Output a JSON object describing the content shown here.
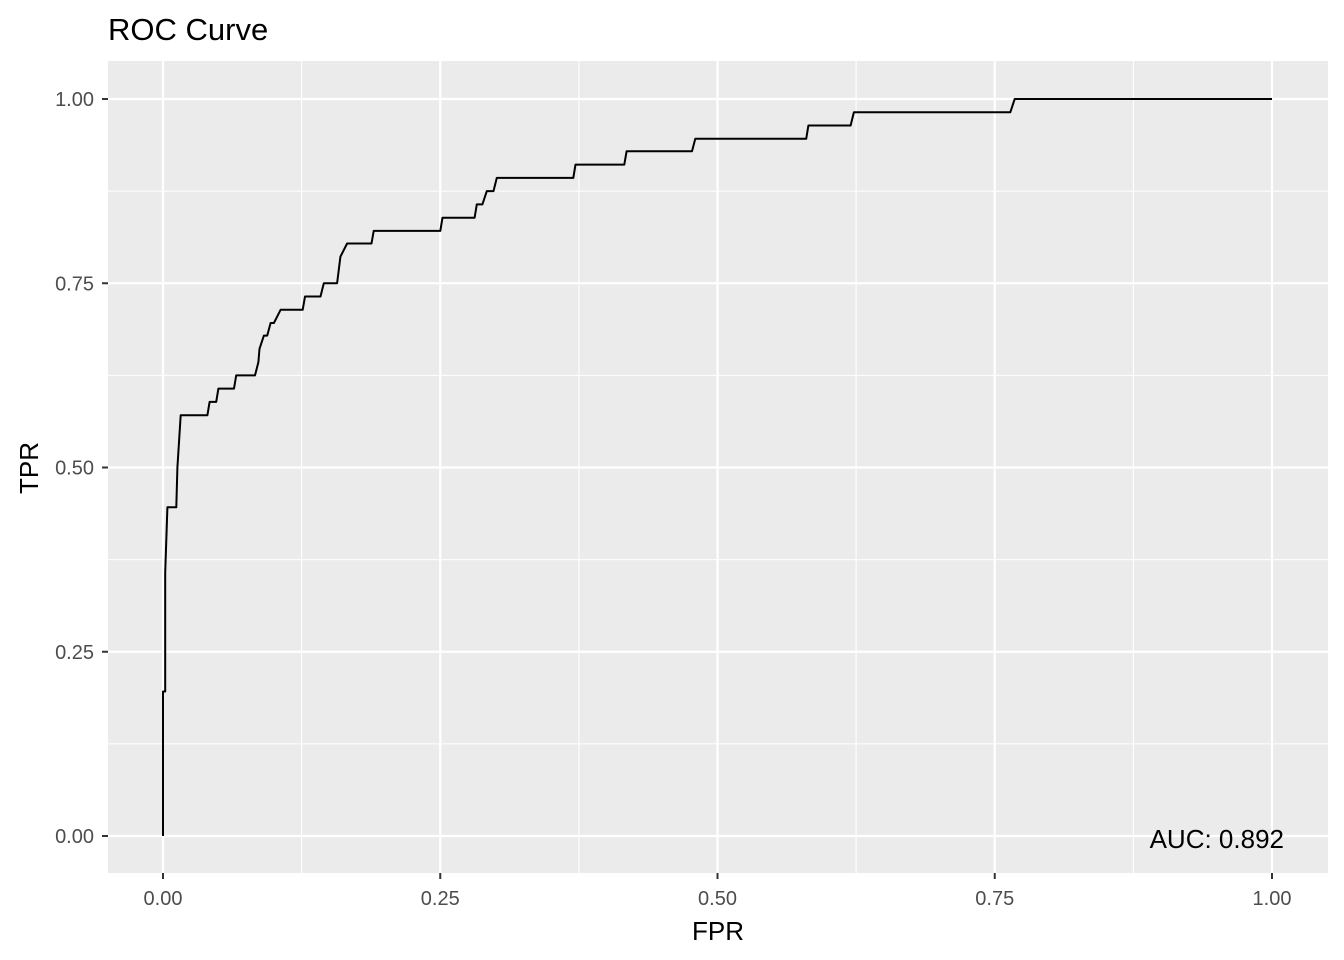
{
  "chart_data": {
    "type": "line",
    "title": "ROC Curve",
    "xlabel": "FPR",
    "ylabel": "TPR",
    "xlim": [
      0,
      1
    ],
    "ylim": [
      0,
      1
    ],
    "x_ticks": [
      0,
      0.25,
      0.5,
      0.75,
      1
    ],
    "x_tick_labels": [
      "0.00",
      "0.25",
      "0.50",
      "0.75",
      "1.00"
    ],
    "y_ticks": [
      0,
      0.25,
      0.5,
      0.75,
      1
    ],
    "y_tick_labels": [
      "0.00",
      "0.25",
      "0.50",
      "0.75",
      "1.00"
    ],
    "grid": true,
    "annotation": "AUC:  0.892",
    "colors": {
      "panel": "#ebebeb",
      "grid": "#ffffff",
      "line": "#000000",
      "tick_text": "#4d4d4d"
    },
    "series": [
      {
        "x": [
          0.0,
          0.0,
          0.002,
          0.002,
          0.004,
          0.004,
          0.004,
          0.008,
          0.008,
          0.012,
          0.013,
          0.016,
          0.016,
          0.04,
          0.042,
          0.048,
          0.05,
          0.064,
          0.066,
          0.083,
          0.086,
          0.087,
          0.091,
          0.094,
          0.097,
          0.1,
          0.106,
          0.126,
          0.128,
          0.134,
          0.136,
          0.142,
          0.145,
          0.157,
          0.16,
          0.166,
          0.17,
          0.188,
          0.19,
          0.25,
          0.252,
          0.281,
          0.283,
          0.288,
          0.292,
          0.298,
          0.301,
          0.37,
          0.372,
          0.416,
          0.418,
          0.477,
          0.48,
          0.58,
          0.582,
          0.62,
          0.623,
          0.764,
          0.768,
          1.0
        ],
        "y": [
          0.0,
          0.196,
          0.196,
          0.357,
          0.446,
          0.446,
          0.446,
          0.446,
          0.446,
          0.446,
          0.5,
          0.571,
          0.571,
          0.571,
          0.589,
          0.589,
          0.607,
          0.607,
          0.625,
          0.625,
          0.643,
          0.661,
          0.679,
          0.679,
          0.696,
          0.696,
          0.714,
          0.714,
          0.732,
          0.732,
          0.732,
          0.732,
          0.75,
          0.75,
          0.786,
          0.804,
          0.804,
          0.804,
          0.821,
          0.821,
          0.839,
          0.839,
          0.857,
          0.857,
          0.875,
          0.875,
          0.893,
          0.893,
          0.911,
          0.911,
          0.929,
          0.929,
          0.946,
          0.946,
          0.964,
          0.964,
          0.982,
          0.982,
          1.0,
          1.0
        ]
      }
    ]
  }
}
